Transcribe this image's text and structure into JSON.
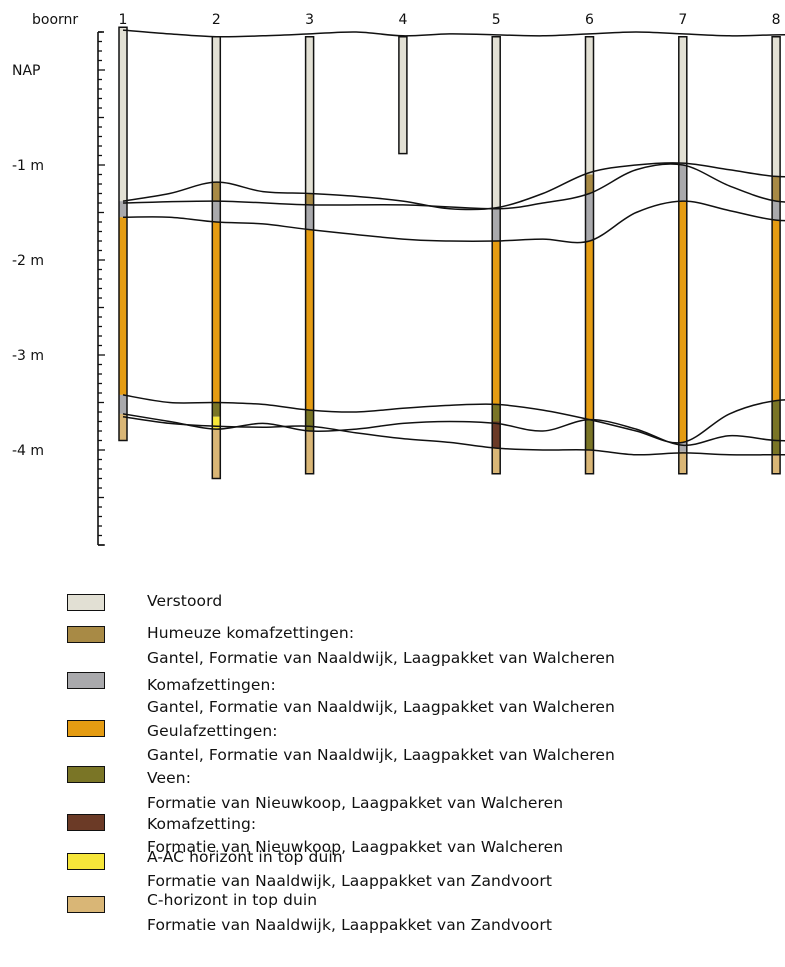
{
  "header": {
    "boring_label": "boornr",
    "borings": [
      "1",
      "2",
      "3",
      "4",
      "5",
      "6",
      "7",
      "8"
    ]
  },
  "depth_axis": {
    "labels": [
      {
        "text": "NAP",
        "depth": 0
      },
      {
        "text": "-1  m",
        "depth": -1
      },
      {
        "text": "-2  m",
        "depth": -2
      },
      {
        "text": "-3  m",
        "depth": -3
      },
      {
        "text": "-4  m",
        "depth": -4
      }
    ],
    "range_m": [
      0.4,
      -5.0
    ]
  },
  "colors": {
    "verstoord": "#e2e0d4",
    "humeuze": "#a88a45",
    "kom": "#a9a9ac",
    "geul": "#e59c12",
    "veen": "#7a7526",
    "komafzetting_nieuwkoop": "#6b3a26",
    "a_ac": "#f6e63a",
    "c_horizont": "#d9b676"
  },
  "cores": [
    {
      "id": "1",
      "segments": [
        [
          "verstoord",
          0.45,
          -1.38
        ],
        [
          "kom",
          -1.38,
          -1.55
        ],
        [
          "geul",
          -1.55,
          -3.42
        ],
        [
          "kom",
          -3.42,
          -3.62
        ],
        [
          "c_horizont",
          -3.62,
          -3.9
        ]
      ]
    },
    {
      "id": "2",
      "segments": [
        [
          "verstoord",
          0.35,
          -1.18
        ],
        [
          "humeuze",
          -1.18,
          -1.38
        ],
        [
          "kom",
          -1.38,
          -1.6
        ],
        [
          "geul",
          -1.6,
          -3.5
        ],
        [
          "veen",
          -3.5,
          -3.65
        ],
        [
          "a_ac",
          -3.65,
          -3.78
        ],
        [
          "c_horizont",
          -3.78,
          -4.3
        ]
      ]
    },
    {
      "id": "3",
      "segments": [
        [
          "verstoord",
          0.35,
          -1.3
        ],
        [
          "humeuze",
          -1.3,
          -1.42
        ],
        [
          "kom",
          -1.42,
          -1.68
        ],
        [
          "geul",
          -1.68,
          -3.58
        ],
        [
          "veen",
          -3.58,
          -3.8
        ],
        [
          "c_horizont",
          -3.8,
          -4.25
        ]
      ]
    },
    {
      "id": "4",
      "segments": [
        [
          "verstoord",
          0.35,
          -0.88
        ]
      ]
    },
    {
      "id": "5",
      "segments": [
        [
          "verstoord",
          0.35,
          -1.45
        ],
        [
          "kom",
          -1.45,
          -1.8
        ],
        [
          "geul",
          -1.8,
          -3.52
        ],
        [
          "veen",
          -3.52,
          -3.7
        ],
        [
          "komafzetting_nieuwkoop",
          -3.7,
          -3.98
        ],
        [
          "c_horizont",
          -3.98,
          -4.25
        ]
      ]
    },
    {
      "id": "6",
      "segments": [
        [
          "verstoord",
          0.35,
          -1.1
        ],
        [
          "humeuze",
          -1.1,
          -1.3
        ],
        [
          "kom",
          -1.3,
          -1.8
        ],
        [
          "geul",
          -1.8,
          -3.68
        ],
        [
          "veen",
          -3.68,
          -4.0
        ],
        [
          "c_horizont",
          -4.0,
          -4.25
        ]
      ]
    },
    {
      "id": "7",
      "segments": [
        [
          "verstoord",
          0.35,
          -0.98
        ],
        [
          "kom",
          -0.98,
          -1.38
        ],
        [
          "geul",
          -1.38,
          -3.92
        ],
        [
          "kom",
          -3.92,
          -4.02
        ],
        [
          "c_horizont",
          -4.02,
          -4.25
        ]
      ]
    },
    {
      "id": "8",
      "segments": [
        [
          "verstoord",
          0.35,
          -1.12
        ],
        [
          "humeuze",
          -1.12,
          -1.38
        ],
        [
          "kom",
          -1.38,
          -1.58
        ],
        [
          "geul",
          -1.58,
          -3.48
        ],
        [
          "veen",
          -3.48,
          -4.05
        ],
        [
          "c_horizont",
          -4.05,
          -4.25
        ]
      ]
    }
  ],
  "boundaries": [
    [
      [
        1,
        0.42
      ],
      [
        1.5,
        0.38
      ],
      [
        2,
        0.35
      ],
      [
        2.5,
        0.36
      ],
      [
        3,
        0.38
      ],
      [
        3.5,
        0.4
      ],
      [
        4,
        0.36
      ],
      [
        4.5,
        0.38
      ],
      [
        5,
        0.37
      ],
      [
        5.5,
        0.36
      ],
      [
        6,
        0.38
      ],
      [
        6.5,
        0.4
      ],
      [
        7,
        0.38
      ],
      [
        7.5,
        0.36
      ],
      [
        8,
        0.37
      ],
      [
        8.5,
        0.37
      ]
    ],
    [
      [
        1,
        -1.38
      ],
      [
        1.5,
        -1.3
      ],
      [
        2,
        -1.18
      ],
      [
        2.5,
        -1.28
      ],
      [
        3,
        -1.3
      ],
      [
        3.5,
        -1.33
      ],
      [
        4,
        -1.38
      ],
      [
        4.5,
        -1.46
      ],
      [
        5,
        -1.45
      ],
      [
        5.5,
        -1.3
      ],
      [
        6,
        -1.08
      ],
      [
        6.5,
        -1.0
      ],
      [
        7,
        -0.98
      ],
      [
        7.5,
        -1.05
      ],
      [
        8,
        -1.12
      ],
      [
        8.5,
        -1.12
      ]
    ],
    [
      [
        1,
        -1.4
      ],
      [
        2,
        -1.38
      ],
      [
        3,
        -1.42
      ],
      [
        4,
        -1.42
      ],
      [
        5,
        -1.46
      ],
      [
        5.5,
        -1.4
      ],
      [
        6,
        -1.3
      ],
      [
        6.5,
        -1.05
      ],
      [
        7,
        -1.0
      ],
      [
        7.5,
        -1.22
      ],
      [
        8,
        -1.38
      ],
      [
        8.5,
        -1.38
      ]
    ],
    [
      [
        1,
        -1.55
      ],
      [
        1.5,
        -1.55
      ],
      [
        2,
        -1.6
      ],
      [
        2.5,
        -1.62
      ],
      [
        3,
        -1.68
      ],
      [
        4,
        -1.78
      ],
      [
        4.5,
        -1.8
      ],
      [
        5,
        -1.8
      ],
      [
        5.5,
        -1.78
      ],
      [
        6,
        -1.8
      ],
      [
        6.5,
        -1.5
      ],
      [
        7,
        -1.38
      ],
      [
        7.5,
        -1.48
      ],
      [
        8,
        -1.58
      ],
      [
        8.5,
        -1.58
      ]
    ],
    [
      [
        1,
        -3.42
      ],
      [
        1.5,
        -3.5
      ],
      [
        2,
        -3.5
      ],
      [
        2.5,
        -3.52
      ],
      [
        3,
        -3.58
      ],
      [
        3.5,
        -3.6
      ],
      [
        4,
        -3.56
      ],
      [
        4.5,
        -3.53
      ],
      [
        5,
        -3.52
      ],
      [
        5.5,
        -3.58
      ],
      [
        6,
        -3.68
      ],
      [
        6.5,
        -3.8
      ],
      [
        7,
        -3.92
      ],
      [
        7.5,
        -3.62
      ],
      [
        8,
        -3.48
      ],
      [
        8.5,
        -3.48
      ]
    ],
    [
      [
        1,
        -3.62
      ],
      [
        1.5,
        -3.7
      ],
      [
        2,
        -3.78
      ],
      [
        2.5,
        -3.72
      ],
      [
        3,
        -3.8
      ],
      [
        3.5,
        -3.78
      ],
      [
        4,
        -3.72
      ],
      [
        4.5,
        -3.7
      ],
      [
        5,
        -3.72
      ],
      [
        5.5,
        -3.8
      ],
      [
        6,
        -3.68
      ],
      [
        6.5,
        -3.78
      ],
      [
        7,
        -3.95
      ],
      [
        7.5,
        -3.85
      ],
      [
        8,
        -3.9
      ],
      [
        8.5,
        -3.9
      ]
    ],
    [
      [
        1,
        -3.65
      ],
      [
        1.5,
        -3.72
      ],
      [
        2,
        -3.75
      ],
      [
        2.5,
        -3.76
      ],
      [
        3,
        -3.75
      ],
      [
        3.5,
        -3.82
      ],
      [
        4,
        -3.88
      ],
      [
        4.5,
        -3.92
      ],
      [
        5,
        -3.98
      ],
      [
        5.5,
        -4.0
      ],
      [
        6,
        -4.0
      ],
      [
        6.5,
        -4.05
      ],
      [
        7,
        -4.03
      ],
      [
        7.5,
        -4.05
      ],
      [
        8,
        -4.05
      ],
      [
        8.5,
        -4.05
      ]
    ]
  ],
  "legend": [
    {
      "color_key": "verstoord",
      "title": "Verstoord",
      "detail": ""
    },
    {
      "color_key": "humeuze",
      "title": "Humeuze  komafzettingen:",
      "detail": "Gantel, Formatie  van  Naaldwijk, Laagpakket  van  Walcheren"
    },
    {
      "color_key": "kom",
      "title": "Komafzettingen:",
      "detail": "Gantel, Formatie  van  Naaldwijk, Laagpakket  van  Walcheren"
    },
    {
      "color_key": "geul",
      "title": "Geulafzettingen:",
      "detail": "Gantel, Formatie  van  Naaldwijk, Laagpakket  van  Walcheren"
    },
    {
      "color_key": "veen",
      "title": "Veen:",
      "detail": "Formatie  van  Nieuwkoop, Laagpakket  van  Walcheren"
    },
    {
      "color_key": "komafzetting_nieuwkoop",
      "title": "Komafzetting:",
      "detail": "Formatie  van  Nieuwkoop, Laagpakket  van  Walcheren"
    },
    {
      "color_key": "a_ac",
      "title": "A-AC  horizont  in  top  duin",
      "detail": "Formatie  van  Naaldwijk, Laappakket  van  Zandvoort"
    },
    {
      "color_key": "c_horizont",
      "title": "C-horizont  in  top  duin",
      "detail": "Formatie  van  Naaldwijk, Laappakket  van  Zandvoort"
    }
  ]
}
